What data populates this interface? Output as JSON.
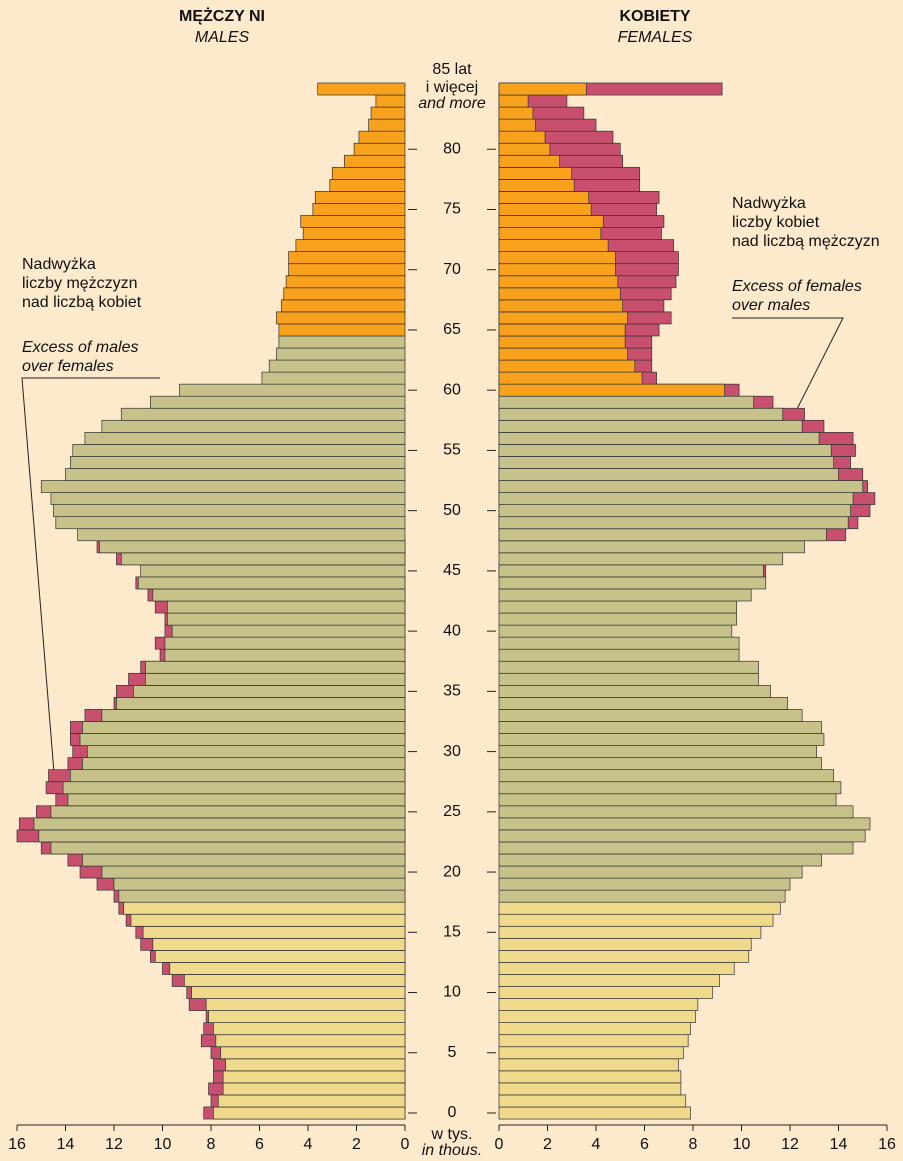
{
  "chart_data": {
    "type": "population_pyramid",
    "male_title": "MĘŻCZY NI",
    "male_subtitle": "MALES",
    "female_title": "KOBIETY",
    "female_subtitle": "FEMALES",
    "age_top_label": [
      "85 lat",
      "i więcej",
      "and more"
    ],
    "unit_label": [
      "w tys.",
      "in thous."
    ],
    "annotation_males": [
      "Nadwyżka",
      "liczby mężczyzn",
      "nad liczbą kobiet"
    ],
    "annotation_males_en": [
      "Excess of males",
      "over females"
    ],
    "annotation_females": [
      "Nadwyżka",
      "liczby kobiet",
      "nad liczbą mężczyzn"
    ],
    "annotation_females_en": [
      "Excess of females",
      "over males"
    ],
    "ages_count_from": 0,
    "yticks": [
      0,
      5,
      10,
      15,
      20,
      25,
      30,
      35,
      40,
      45,
      50,
      55,
      60,
      65,
      70,
      75,
      80
    ],
    "xlim": [
      0,
      16
    ],
    "xticks": [
      0,
      2,
      4,
      6,
      8,
      10,
      12,
      14,
      16
    ],
    "age_bands": {
      "male": [
        18,
        65
      ],
      "female": [
        18,
        60
      ]
    },
    "colors": {
      "pre_working": "#efda8c",
      "working": "#c6c28a",
      "post_working": "#f7a11c",
      "excess": "#c8506e"
    },
    "males": [
      8.3,
      8.0,
      8.1,
      7.9,
      7.9,
      8.0,
      8.4,
      8.3,
      8.2,
      8.9,
      9.0,
      9.6,
      10.0,
      10.5,
      10.9,
      11.1,
      11.5,
      11.8,
      12.0,
      12.7,
      13.4,
      13.9,
      15.0,
      16.0,
      15.9,
      15.2,
      14.4,
      14.8,
      14.7,
      13.9,
      13.7,
      13.8,
      13.8,
      13.2,
      12.0,
      11.9,
      11.4,
      10.9,
      10.1,
      10.3,
      9.9,
      9.9,
      10.3,
      10.6,
      11.1,
      10.9,
      11.9,
      12.7,
      13.5,
      14.4,
      14.5,
      14.6,
      15.0,
      14.0,
      13.8,
      13.7,
      13.2,
      12.5,
      11.7,
      10.5,
      9.3,
      5.9,
      5.6,
      5.3,
      5.2,
      5.2,
      5.3,
      5.1,
      5.0,
      4.9,
      4.8,
      4.8,
      4.5,
      4.2,
      4.3,
      3.8,
      3.7,
      3.1,
      3.0,
      2.5,
      2.1,
      1.9,
      1.5,
      1.4,
      1.2,
      3.6
    ],
    "females": [
      7.9,
      7.7,
      7.5,
      7.5,
      7.4,
      7.6,
      7.8,
      7.9,
      8.1,
      8.2,
      8.8,
      9.1,
      9.7,
      10.3,
      10.4,
      10.8,
      11.3,
      11.6,
      11.8,
      12.0,
      12.5,
      13.3,
      14.6,
      15.1,
      15.3,
      14.6,
      13.9,
      14.1,
      13.8,
      13.3,
      13.1,
      13.4,
      13.3,
      12.5,
      11.9,
      11.2,
      10.7,
      10.7,
      9.9,
      9.9,
      9.6,
      9.8,
      9.8,
      10.4,
      11.0,
      11.0,
      11.7,
      12.6,
      14.3,
      14.8,
      15.3,
      15.5,
      15.2,
      15.0,
      14.5,
      14.7,
      14.6,
      13.4,
      12.6,
      11.3,
      9.9,
      6.5,
      6.3,
      6.3,
      6.3,
      6.6,
      7.1,
      6.8,
      7.1,
      7.3,
      7.4,
      7.4,
      7.2,
      6.7,
      6.8,
      6.5,
      6.6,
      5.8,
      5.8,
      5.1,
      5.0,
      4.7,
      4.0,
      3.5,
      2.8,
      9.2
    ]
  }
}
